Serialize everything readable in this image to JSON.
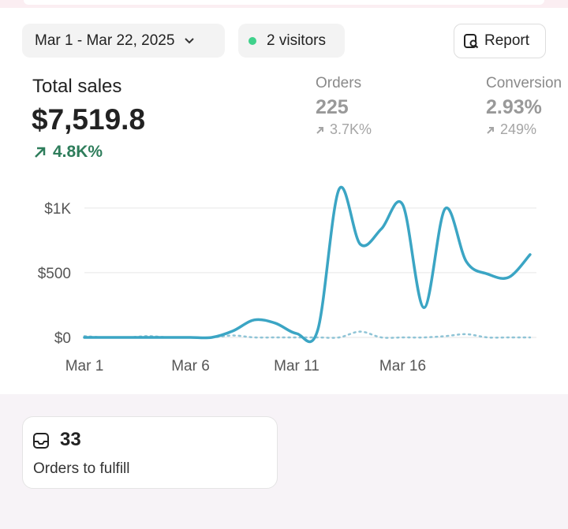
{
  "filters": {
    "date_range": "Mar 1 - Mar 22, 2025",
    "visitors": "2 visitors",
    "report": "Report"
  },
  "metrics": [
    {
      "label": "Total sales",
      "value": "$7,519.8",
      "change": "4.8K%"
    },
    {
      "label": "Orders",
      "value": "225",
      "change": "3.7K%"
    },
    {
      "label": "Conversion",
      "value": "2.93%",
      "change": "249%"
    }
  ],
  "chart_data": {
    "type": "line",
    "categories": [
      "Mar 1",
      null,
      null,
      null,
      null,
      "Mar 6",
      null,
      null,
      null,
      null,
      "Mar 11",
      null,
      null,
      null,
      null,
      "Mar 16",
      null,
      null,
      null,
      null,
      null,
      null
    ],
    "series": [
      {
        "color": "#3ba5c4",
        "values": [
          0,
          0,
          0,
          0,
          0,
          0,
          0,
          50,
          135,
          110,
          30,
          60,
          1145,
          720,
          840,
          1025,
          230,
          995,
          585,
          490,
          465,
          640
        ]
      },
      {
        "color": "#8fc4d6",
        "dashed": true,
        "values": [
          10,
          0,
          0,
          10,
          0,
          0,
          0,
          15,
          0,
          0,
          0,
          0,
          0,
          45,
          0,
          0,
          0,
          10,
          25,
          0,
          0,
          0
        ]
      }
    ],
    "ylim": [
      0,
      1200
    ],
    "yticks": [
      {
        "value": 0,
        "label": "$0"
      },
      {
        "value": 500,
        "label": "$500"
      },
      {
        "value": 1000,
        "label": "$1K"
      }
    ],
    "grid": true
  },
  "card": {
    "value": "33",
    "label": "Orders to fulfill"
  }
}
